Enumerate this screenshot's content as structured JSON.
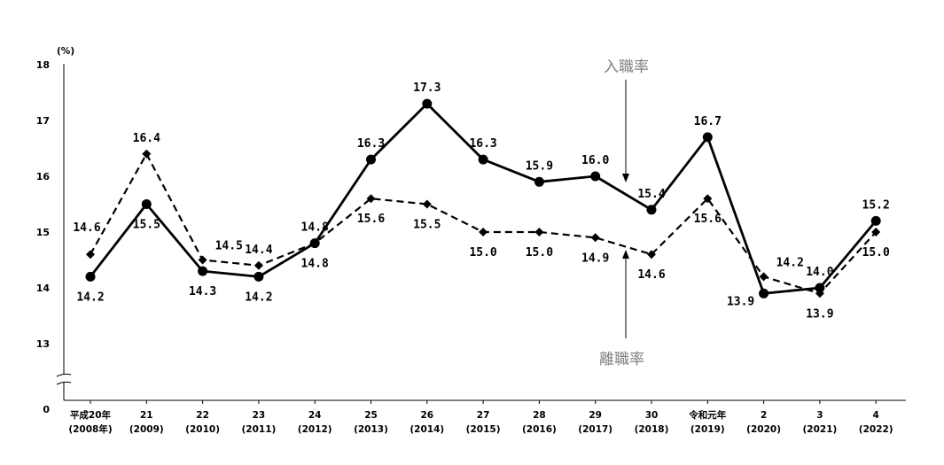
{
  "chart_data": {
    "type": "line",
    "ylabel": "(%)",
    "ylim": [
      12.5,
      18
    ],
    "y_ticks": [
      "18",
      "17",
      "16",
      "15",
      "14",
      "13",
      "0"
    ],
    "axis_break": true,
    "categories": [
      {
        "era": "平成20年",
        "year": "(2008年)"
      },
      {
        "era": "21",
        "year": "(2009)"
      },
      {
        "era": "22",
        "year": "(2010)"
      },
      {
        "era": "23",
        "year": "(2011)"
      },
      {
        "era": "24",
        "year": "(2012)"
      },
      {
        "era": "25",
        "year": "(2013)"
      },
      {
        "era": "26",
        "year": "(2014)"
      },
      {
        "era": "27",
        "year": "(2015)"
      },
      {
        "era": "28",
        "year": "(2016)"
      },
      {
        "era": "29",
        "year": "(2017)"
      },
      {
        "era": "30",
        "year": "(2018)"
      },
      {
        "era": "令和元年",
        "year": "(2019)"
      },
      {
        "era": "2",
        "year": "(2020)"
      },
      {
        "era": "3",
        "year": "(2021)"
      },
      {
        "era": "4",
        "year": "(2022)"
      }
    ],
    "series": [
      {
        "name": "入職率",
        "style": "solid",
        "marker": "circle",
        "color": "#000000",
        "values": [
          14.2,
          15.5,
          14.3,
          14.2,
          14.8,
          16.3,
          17.3,
          16.3,
          15.9,
          16.0,
          15.4,
          16.7,
          13.9,
          14.0,
          15.2
        ],
        "labels": [
          "14.2",
          "15.5",
          "14.3",
          "14.2",
          "14.8",
          "16.3",
          "17.3",
          "16.3",
          "15.9",
          "16.0",
          "15.4",
          "16.7",
          "13.9",
          "14.0",
          "15.2"
        ],
        "label_pos": [
          "below",
          "below",
          "below",
          "below",
          "below",
          "above",
          "above",
          "above",
          "above",
          "above",
          "above",
          "above",
          "left-below",
          "above",
          "above"
        ]
      },
      {
        "name": "離職率",
        "style": "dashed",
        "marker": "diamond",
        "color": "#000000",
        "values": [
          14.6,
          16.4,
          14.5,
          14.4,
          14.8,
          15.6,
          15.5,
          15.0,
          15.0,
          14.9,
          14.6,
          15.6,
          14.2,
          13.9,
          15.0
        ],
        "labels": [
          "14.6",
          "16.4",
          "14.5",
          "14.4",
          "14.8",
          "15.6",
          "15.5",
          "15.0",
          "15.0",
          "14.9",
          "14.6",
          "15.6",
          "14.2",
          "13.9",
          "15.0"
        ],
        "label_pos": [
          "left-above",
          "above",
          "right-above",
          "above",
          "above",
          "below",
          "below",
          "below",
          "below",
          "below",
          "below",
          "below",
          "right-above",
          "below",
          "below"
        ]
      }
    ]
  }
}
